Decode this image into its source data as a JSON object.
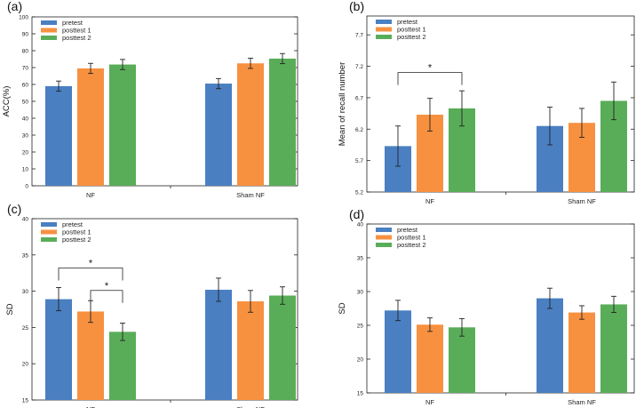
{
  "colors": {
    "pretest": "#4a7fc1",
    "posttest1": "#f79140",
    "posttest2": "#5aad58",
    "errorbar": "#222222",
    "axis": "#222222"
  },
  "chart_data": [
    {
      "type": "bar",
      "panel_label": "(a)",
      "categories": [
        "NF",
        "Sham NF"
      ],
      "series": [
        {
          "name": "pretest",
          "values": [
            59,
            60.5
          ],
          "errors": [
            3,
            3
          ]
        },
        {
          "name": "posttest 1",
          "values": [
            69.5,
            72.5
          ],
          "errors": [
            3,
            3
          ]
        },
        {
          "name": "posttest 2",
          "values": [
            71.8,
            75.3
          ],
          "errors": [
            3,
            3
          ]
        }
      ],
      "ylabel": "ACC(%)",
      "ylim": [
        0,
        100
      ],
      "yticks": [
        0,
        10,
        20,
        30,
        40,
        50,
        60,
        70,
        80,
        90,
        100
      ],
      "ytick_labels": [
        "0",
        "10",
        "20",
        "30",
        "40",
        "50",
        "60",
        "70",
        "80",
        "90",
        "100"
      ],
      "significance": [],
      "legend": "top-left",
      "grid": false
    },
    {
      "type": "bar",
      "panel_label": "(b)",
      "categories": [
        "NF",
        "Sham NF"
      ],
      "series": [
        {
          "name": "pretest",
          "values": [
            5.93,
            6.25
          ],
          "errors": [
            0.32,
            0.3
          ]
        },
        {
          "name": "posttest 1",
          "values": [
            6.43,
            6.3
          ],
          "errors": [
            0.26,
            0.23
          ]
        },
        {
          "name": "posttest 2",
          "values": [
            6.53,
            6.65
          ],
          "errors": [
            0.28,
            0.3
          ]
        }
      ],
      "ylabel": "Mean of recall number",
      "ylim": [
        5.2,
        8.0
      ],
      "yticks": [
        5.2,
        5.7,
        6.2,
        6.7,
        7.2,
        7.7
      ],
      "ytick_labels": [
        "5.2",
        "5.7",
        "6.2",
        "6.7",
        "7.2",
        "7.7"
      ],
      "significance": [
        {
          "category": "NF",
          "from": "pretest",
          "to": "posttest 2",
          "label": "*",
          "y": 7.1
        }
      ],
      "legend": "top-left",
      "grid": false
    },
    {
      "type": "bar",
      "panel_label": "(c)",
      "categories": [
        "NF",
        "Sham NF"
      ],
      "series": [
        {
          "name": "pretest",
          "values": [
            28.9,
            30.2
          ],
          "errors": [
            1.6,
            1.6
          ]
        },
        {
          "name": "posttest 1",
          "values": [
            27.2,
            28.6
          ],
          "errors": [
            1.5,
            1.5
          ]
        },
        {
          "name": "posttest 2",
          "values": [
            24.4,
            29.4
          ],
          "errors": [
            1.2,
            1.2
          ]
        }
      ],
      "ylabel": "SD",
      "ylim": [
        15,
        40
      ],
      "yticks": [
        15,
        20,
        25,
        30,
        35,
        40
      ],
      "ytick_labels": [
        "15",
        "20",
        "25",
        "30",
        "35",
        "40"
      ],
      "significance": [
        {
          "category": "NF",
          "from": "pretest",
          "to": "posttest 2",
          "label": "*",
          "y": 33.2
        },
        {
          "category": "NF",
          "from": "posttest 1",
          "to": "posttest 2",
          "label": "*",
          "y": 30.1
        }
      ],
      "legend": "top-left",
      "grid": false
    },
    {
      "type": "bar",
      "panel_label": "(d)",
      "categories": [
        "NF",
        "Sham NF"
      ],
      "series": [
        {
          "name": "pretest",
          "values": [
            27.2,
            29.0
          ],
          "errors": [
            1.5,
            1.5
          ]
        },
        {
          "name": "posttest 1",
          "values": [
            25.1,
            26.9
          ],
          "errors": [
            1.0,
            1.0
          ]
        },
        {
          "name": "posttest 2",
          "values": [
            24.7,
            28.1
          ],
          "errors": [
            1.3,
            1.2
          ]
        }
      ],
      "ylabel": "SD",
      "ylim": [
        15,
        40
      ],
      "yticks": [
        15,
        20,
        25,
        30,
        35,
        40
      ],
      "ytick_labels": [
        "15",
        "20",
        "25",
        "30",
        "35",
        "40"
      ],
      "significance": [],
      "legend": "top-left",
      "grid": false
    }
  ]
}
